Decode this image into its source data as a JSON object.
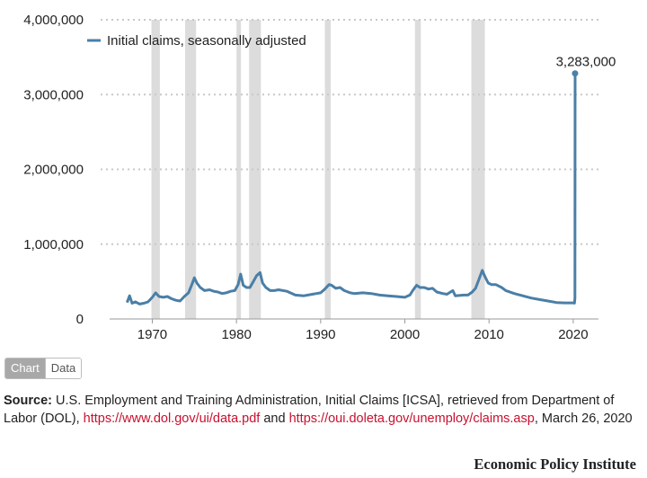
{
  "chart_data": {
    "type": "line",
    "title": "",
    "xlabel": "",
    "ylabel": "",
    "xlim": [
      1966,
      2023
    ],
    "ylim": [
      0,
      4000000
    ],
    "y_ticks": [
      0,
      1000000,
      2000000,
      3000000,
      4000000
    ],
    "y_tick_labels": [
      "0",
      "1,000,000",
      "2,000,000",
      "3,000,000",
      "4,000,000"
    ],
    "x_ticks": [
      1970,
      1980,
      1990,
      2000,
      2010,
      2020
    ],
    "x_tick_labels": [
      "1970",
      "1980",
      "1990",
      "2000",
      "2010",
      "2020"
    ],
    "grid": "horizontal dotted",
    "legend_position": "top-left",
    "recession_shading": [
      [
        1969.9,
        1970.9
      ],
      [
        1973.9,
        1975.2
      ],
      [
        1980.0,
        1980.5
      ],
      [
        1981.5,
        1982.9
      ],
      [
        1990.5,
        1991.2
      ],
      [
        2001.2,
        2001.9
      ],
      [
        2007.9,
        2009.5
      ]
    ],
    "series": [
      {
        "name": "Initial claims, seasonally adjusted",
        "color": "#4a7fa7",
        "x": [
          1967.0,
          1967.3,
          1967.6,
          1968.0,
          1968.5,
          1969.0,
          1969.5,
          1970.0,
          1970.4,
          1970.8,
          1971.3,
          1971.8,
          1972.3,
          1972.8,
          1973.3,
          1973.8,
          1974.3,
          1974.7,
          1975.0,
          1975.3,
          1975.7,
          1976.2,
          1976.8,
          1977.3,
          1977.8,
          1978.3,
          1978.8,
          1979.3,
          1979.8,
          1980.2,
          1980.5,
          1980.8,
          1981.2,
          1981.6,
          1982.0,
          1982.4,
          1982.8,
          1983.1,
          1983.5,
          1984.0,
          1984.5,
          1985.0,
          1986.0,
          1987.0,
          1988.0,
          1989.0,
          1989.5,
          1990.0,
          1990.5,
          1991.0,
          1991.3,
          1991.8,
          1992.3,
          1992.8,
          1993.5,
          1994.0,
          1995.0,
          1996.0,
          1997.0,
          1998.0,
          1999.0,
          2000.0,
          2000.6,
          2001.0,
          2001.4,
          2001.8,
          2002.3,
          2002.8,
          2003.3,
          2003.8,
          2004.5,
          2005.0,
          2005.7,
          2006.0,
          2007.0,
          2007.5,
          2008.0,
          2008.4,
          2008.8,
          2009.2,
          2009.5,
          2009.9,
          2010.3,
          2010.8,
          2011.5,
          2012.0,
          2013.0,
          2014.0,
          2015.0,
          2016.0,
          2017.0,
          2018.0,
          2019.0,
          2020.0,
          2020.15,
          2020.2,
          2020.22
        ],
        "values": [
          220000,
          310000,
          210000,
          230000,
          200000,
          210000,
          230000,
          290000,
          350000,
          300000,
          290000,
          300000,
          270000,
          250000,
          240000,
          300000,
          350000,
          460000,
          550000,
          480000,
          420000,
          380000,
          390000,
          370000,
          360000,
          340000,
          350000,
          370000,
          380000,
          460000,
          600000,
          450000,
          420000,
          420000,
          500000,
          580000,
          620000,
          480000,
          420000,
          380000,
          380000,
          390000,
          370000,
          320000,
          310000,
          330000,
          340000,
          350000,
          400000,
          460000,
          450000,
          410000,
          420000,
          380000,
          350000,
          340000,
          350000,
          340000,
          320000,
          310000,
          300000,
          290000,
          320000,
          390000,
          450000,
          420000,
          420000,
          400000,
          410000,
          360000,
          340000,
          330000,
          380000,
          310000,
          320000,
          320000,
          360000,
          410000,
          530000,
          650000,
          570000,
          480000,
          460000,
          460000,
          420000,
          380000,
          340000,
          310000,
          280000,
          260000,
          240000,
          220000,
          215000,
          215000,
          211000,
          281000,
          3283000
        ]
      }
    ],
    "annotations": [
      {
        "text": "3,283,000",
        "x": 2020.22,
        "y": 3283000
      }
    ]
  },
  "toggle": {
    "chart_label": "Chart",
    "data_label": "Data"
  },
  "source": {
    "label": "Source:",
    "text_1": " U.S. Employment and Training Administration, Initial Claims [ICSA], retrieved from Department of Labor (DOL), ",
    "link_1": "https://www.dol.gov/ui/data.pdf",
    "text_2": " and ",
    "link_2": "https://oui.doleta.gov/unemploy/claims.asp",
    "text_3": ", March 26, 2020"
  },
  "brand": "Economic Policy Institute"
}
